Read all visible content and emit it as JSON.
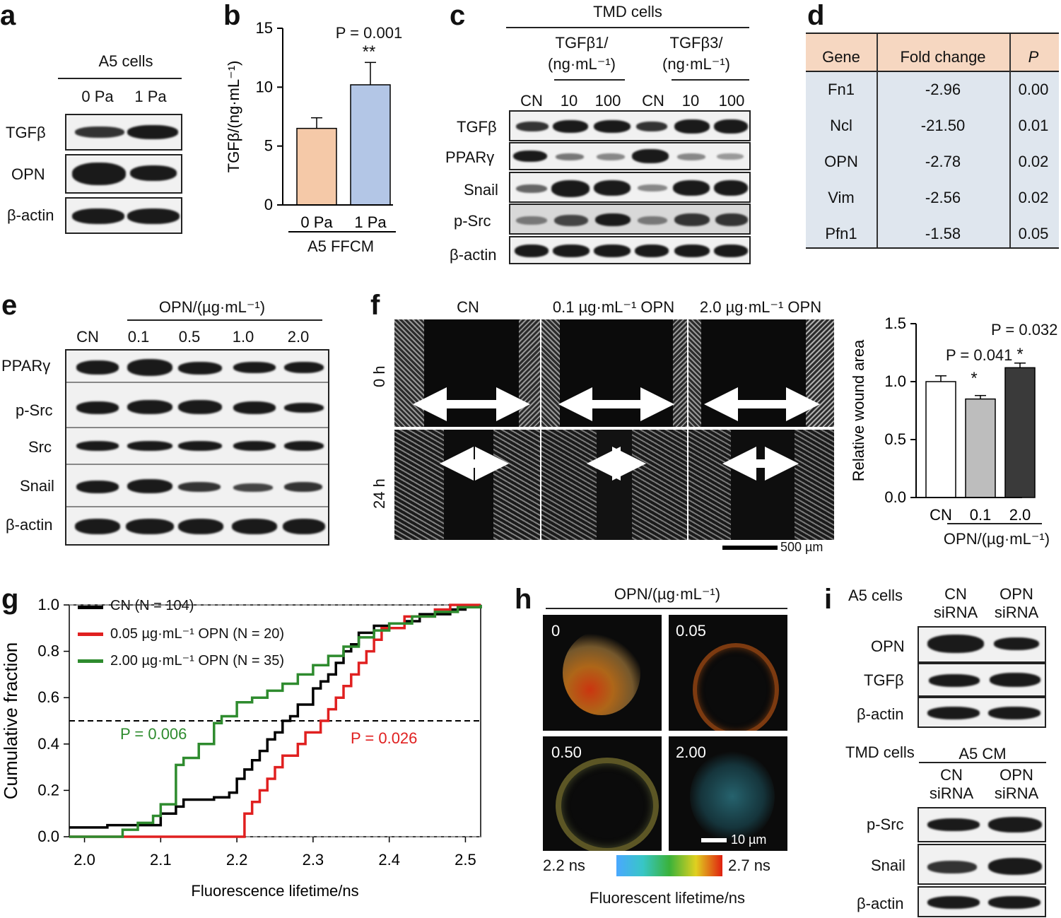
{
  "panel_labels": {
    "a": "a",
    "b": "b",
    "c": "c",
    "d": "d",
    "e": "e",
    "f": "f",
    "g": "g",
    "h": "h",
    "i": "i"
  },
  "panel_a": {
    "header": "A5 cells",
    "lanes": [
      "0 Pa",
      "1 Pa"
    ],
    "rows": [
      "TGFβ",
      "OPN",
      "β-actin"
    ]
  },
  "panel_b": {
    "pvalue": "P = 0.001",
    "stars": "**",
    "group_label": "A5 FFCM",
    "chart_data": {
      "type": "bar",
      "categories": [
        "0 Pa",
        "1 Pa"
      ],
      "values": [
        6.5,
        10.2
      ],
      "errors": [
        0.9,
        1.9
      ],
      "colors": [
        "#f5c9a8",
        "#b3c6e6"
      ],
      "ylabel": "TGFβ/(ng·mL⁻¹)",
      "ylim": [
        0,
        15
      ],
      "yticks": [
        0,
        5,
        10,
        15
      ]
    }
  },
  "panel_c": {
    "header": "TMD cells",
    "group1": "TGFβ1/\n(ng·mL⁻¹)",
    "group2": "TGFβ3/\n(ng·mL⁻¹)",
    "lanes": [
      "CN",
      "10",
      "100",
      "CN",
      "10",
      "100"
    ],
    "rows": [
      "TGFβ",
      "PPARγ",
      "Snail",
      "p-Src",
      "β-actin"
    ]
  },
  "panel_d": {
    "headers": [
      "Gene",
      "Fold change",
      "P"
    ],
    "rows": [
      [
        "Fn1",
        "-2.96",
        "0.00"
      ],
      [
        "Ncl",
        "-21.50",
        "0.01"
      ],
      [
        "OPN",
        "-2.78",
        "0.02"
      ],
      [
        "Vim",
        "-2.56",
        "0.02"
      ],
      [
        "Pfn1",
        "-1.58",
        "0.05"
      ]
    ]
  },
  "panel_e": {
    "header": "OPN/(µg·mL⁻¹)",
    "lanes": [
      "CN",
      "0.1",
      "0.5",
      "1.0",
      "2.0"
    ],
    "rows": [
      "PPARγ",
      "p-Src",
      "Src",
      "Snail",
      "β-actin"
    ]
  },
  "panel_f": {
    "columns": [
      "CN",
      "0.1 µg·mL⁻¹ OPN",
      "2.0 µg·mL⁻¹  OPN"
    ],
    "rows": [
      "0 h",
      "24 h"
    ],
    "scale_bar": "500 µm",
    "p1": "P = 0.041",
    "p2": "P = 0.032",
    "star": "*",
    "xgroup": "OPN/(µg·mL⁻¹)",
    "chart_data": {
      "type": "bar",
      "categories": [
        "CN",
        "0.1",
        "2.0"
      ],
      "values": [
        1.0,
        0.85,
        1.12
      ],
      "errors": [
        0.05,
        0.03,
        0.04
      ],
      "colors": [
        "#ffffff",
        "#bdbdbd",
        "#3a3a3a"
      ],
      "ylabel": "Relative wound area",
      "ylim": [
        0,
        1.5
      ],
      "yticks": [
        0.0,
        0.5,
        1.0,
        1.5
      ]
    }
  },
  "panel_g": {
    "p_green": "P = 0.006",
    "p_red": "P = 0.026",
    "chart_data": {
      "type": "line",
      "title": "",
      "xlabel": "Fluorescence lifetime/ns",
      "ylabel": "Cumulative fraction",
      "xlim": [
        1.98,
        2.52
      ],
      "ylim": [
        0,
        1.0
      ],
      "xticks": [
        2.0,
        2.1,
        2.2,
        2.3,
        2.4,
        2.5
      ],
      "yticks": [
        0.0,
        0.2,
        0.4,
        0.6,
        0.8,
        1.0
      ],
      "median_line": 0.5,
      "series": [
        {
          "name": "CN (N = 104)",
          "color": "#000000",
          "x": [
            1.98,
            2.03,
            2.03,
            2.1,
            2.1,
            2.12,
            2.13,
            2.15,
            2.17,
            2.19,
            2.2,
            2.21,
            2.22,
            2.23,
            2.24,
            2.25,
            2.26,
            2.27,
            2.28,
            2.29,
            2.3,
            2.31,
            2.32,
            2.33,
            2.34,
            2.35,
            2.36,
            2.38,
            2.4,
            2.42,
            2.44,
            2.46,
            2.48,
            2.5,
            2.52
          ],
          "y": [
            0.04,
            0.04,
            0.05,
            0.07,
            0.1,
            0.13,
            0.16,
            0.16,
            0.17,
            0.19,
            0.25,
            0.29,
            0.33,
            0.37,
            0.42,
            0.45,
            0.5,
            0.52,
            0.57,
            0.57,
            0.64,
            0.67,
            0.7,
            0.75,
            0.8,
            0.83,
            0.88,
            0.91,
            0.92,
            0.93,
            0.96,
            0.96,
            0.98,
            0.99,
            1.0
          ]
        },
        {
          "name": "0.05 µg·mL⁻¹ OPN (N = 20)",
          "color": "#e02020",
          "x": [
            1.98,
            2.2,
            2.21,
            2.21,
            2.22,
            2.23,
            2.24,
            2.25,
            2.26,
            2.28,
            2.29,
            2.31,
            2.32,
            2.33,
            2.34,
            2.35,
            2.36,
            2.37,
            2.38,
            2.39,
            2.4,
            2.42,
            2.44,
            2.46,
            2.48,
            2.5,
            2.52
          ],
          "y": [
            0.0,
            0.0,
            0.05,
            0.1,
            0.15,
            0.2,
            0.25,
            0.3,
            0.35,
            0.4,
            0.45,
            0.5,
            0.55,
            0.6,
            0.65,
            0.7,
            0.75,
            0.8,
            0.85,
            0.9,
            0.9,
            0.95,
            0.95,
            0.98,
            1.0,
            1.0,
            1.0
          ]
        },
        {
          "name": "2.00 µg·mL⁻¹ OPN (N = 35)",
          "color": "#2e8b2e",
          "x": [
            1.98,
            2.03,
            2.05,
            2.07,
            2.09,
            2.1,
            2.12,
            2.13,
            2.15,
            2.17,
            2.18,
            2.2,
            2.22,
            2.24,
            2.26,
            2.28,
            2.3,
            2.32,
            2.34,
            2.36,
            2.38,
            2.4,
            2.43,
            2.46,
            2.49,
            2.52
          ],
          "y": [
            0.0,
            0.0,
            0.03,
            0.06,
            0.09,
            0.14,
            0.31,
            0.34,
            0.4,
            0.49,
            0.52,
            0.58,
            0.6,
            0.63,
            0.66,
            0.7,
            0.74,
            0.78,
            0.82,
            0.86,
            0.89,
            0.92,
            0.95,
            0.97,
            0.99,
            1.0
          ]
        }
      ]
    },
    "legend": [
      {
        "label": "CN (N = 104)"
      },
      {
        "label": "0.05 µg·mL⁻¹ OPN (N = 20)"
      },
      {
        "label": "2.00 µg·mL⁻¹ OPN (N = 35)"
      }
    ]
  },
  "panel_h": {
    "header": "OPN/(µg·mL⁻¹)",
    "images": [
      "0",
      "0.05",
      "0.50",
      "2.00"
    ],
    "scale_bar": "10 µm",
    "cbar_min": "2.2 ns",
    "cbar_max": "2.7 ns",
    "cbar_title": "Fluorescent lifetime/ns"
  },
  "panel_i": {
    "top_header": "A5 cells",
    "top_lanes": [
      "CN\nsiRNA",
      "OPN\nsiRNA"
    ],
    "top_rows": [
      "OPN",
      "TGFβ",
      "β-actin"
    ],
    "bottom_header_left": "TMD cells",
    "bottom_header": "A5 CM",
    "bottom_lanes": [
      "CN\nsiRNA",
      "OPN\nsiRNA"
    ],
    "bottom_rows": [
      "p-Src",
      "Snail",
      "β-actin"
    ]
  }
}
